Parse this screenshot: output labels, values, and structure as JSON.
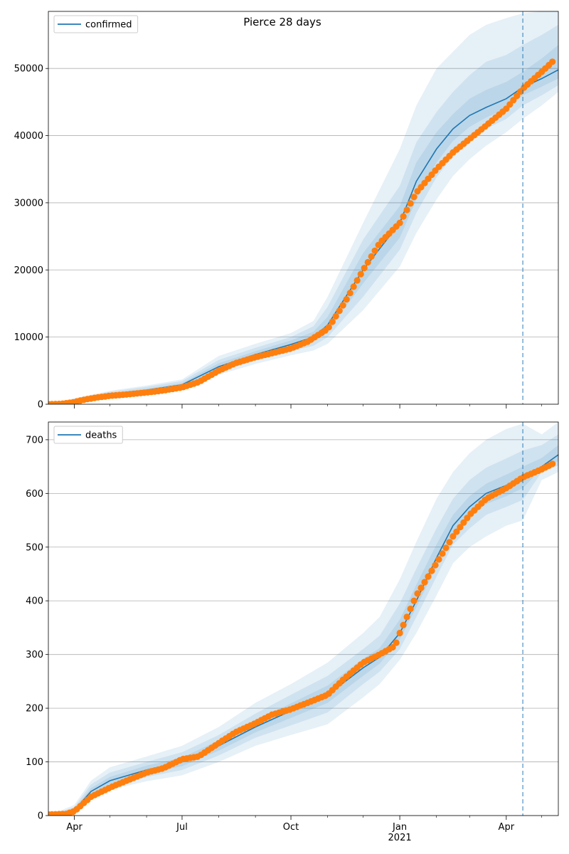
{
  "suptitle": "Pierce 28 days",
  "colors": {
    "model": "#1f77b4",
    "band": "#1f77b4",
    "observed": "#ff7f0e",
    "grid": "#b0b0b0",
    "forecast_line": "#1f77b4"
  },
  "x_axis": {
    "range": [
      "2020-03-10",
      "2021-05-15"
    ],
    "ticks": [
      {
        "date": "2020-04-01",
        "label": "Apr",
        "sub": ""
      },
      {
        "date": "2020-07-01",
        "label": "Jul",
        "sub": ""
      },
      {
        "date": "2020-10-01",
        "label": "Oct",
        "sub": ""
      },
      {
        "date": "2021-01-01",
        "label": "Jan",
        "sub": "2021"
      },
      {
        "date": "2021-04-01",
        "label": "Apr",
        "sub": ""
      }
    ],
    "minor_ticks": [
      "2020-05-01",
      "2020-06-01",
      "2020-08-01",
      "2020-09-01",
      "2020-11-01",
      "2020-12-01",
      "2021-02-01",
      "2021-03-01",
      "2021-05-01"
    ],
    "forecast_start": "2021-04-15"
  },
  "chart_data": [
    {
      "type": "line",
      "series_name": "confirmed",
      "legend": {
        "label": "confirmed",
        "placement": "upper-left"
      },
      "grid": true,
      "ylim": [
        0,
        58500
      ],
      "yticks": [
        0,
        10000,
        20000,
        30000,
        40000,
        50000
      ],
      "model": {
        "dates": [
          "2020-03-10",
          "2020-04-01",
          "2020-05-01",
          "2020-06-01",
          "2020-07-01",
          "2020-08-01",
          "2020-09-01",
          "2020-10-01",
          "2020-10-20",
          "2020-11-01",
          "2020-12-01",
          "2021-01-01",
          "2021-01-15",
          "2021-02-01",
          "2021-02-15",
          "2021-03-01",
          "2021-03-15",
          "2021-04-01",
          "2021-04-15",
          "2021-05-01",
          "2021-05-15"
        ],
        "values": [
          0,
          600,
          1500,
          2100,
          2900,
          5600,
          7400,
          8900,
          10000,
          11800,
          20000,
          27000,
          33200,
          38000,
          41000,
          43000,
          44200,
          45500,
          47200,
          48500,
          49800
        ],
        "bands": [
          {
            "lower": [
              0,
              400,
              1100,
              1600,
              2200,
              4400,
              6000,
              7300,
              8000,
              9000,
              14000,
              20500,
              25500,
              30500,
              34000,
              36500,
              38500,
              40500,
              42500,
              44500,
              46500
            ],
            "upper": [
              0,
              900,
              2000,
              2800,
              3700,
              7200,
              9000,
              10600,
              12400,
              16000,
              27000,
              38000,
              44500,
              50000,
              52500,
              55000,
              56500,
              57500,
              58200,
              58500,
              58500
            ]
          },
          {
            "lower": [
              0,
              470,
              1250,
              1800,
              2450,
              4850,
              6550,
              7900,
              8700,
              10000,
              16000,
              23000,
              28500,
              33800,
              37000,
              39500,
              41000,
              42500,
              44500,
              46000,
              47500
            ],
            "upper": [
              0,
              800,
              1850,
              2600,
              3450,
              6600,
              8400,
              10000,
              11600,
              14500,
              24500,
              32500,
              39000,
              43500,
              46500,
              49000,
              51000,
              52000,
              53500,
              55000,
              56500
            ]
          },
          {
            "lower": [
              0,
              530,
              1380,
              1950,
              2650,
              5200,
              7000,
              8400,
              9350,
              10900,
              18000,
              24800,
              30500,
              36000,
              39200,
              41300,
              42700,
              44000,
              46000,
              47300,
              48500
            ],
            "upper": [
              0,
              700,
              1650,
              2300,
              3150,
              6100,
              7900,
              9500,
              10800,
              13000,
              22500,
              29500,
              36000,
              40500,
              43200,
              45500,
              46800,
              48000,
              49500,
              51500,
              53500
            ]
          }
        ]
      },
      "observed": [
        {
          "date": "2020-03-10",
          "value": 0
        },
        {
          "date": "2020-03-20",
          "value": 50
        },
        {
          "date": "2020-03-30",
          "value": 250
        },
        {
          "date": "2020-04-10",
          "value": 700
        },
        {
          "date": "2020-04-20",
          "value": 1000
        },
        {
          "date": "2020-05-01",
          "value": 1250
        },
        {
          "date": "2020-05-15",
          "value": 1450
        },
        {
          "date": "2020-06-01",
          "value": 1750
        },
        {
          "date": "2020-06-15",
          "value": 2050
        },
        {
          "date": "2020-07-01",
          "value": 2500
        },
        {
          "date": "2020-07-15",
          "value": 3300
        },
        {
          "date": "2020-08-01",
          "value": 5000
        },
        {
          "date": "2020-08-15",
          "value": 6100
        },
        {
          "date": "2020-09-01",
          "value": 7000
        },
        {
          "date": "2020-09-15",
          "value": 7600
        },
        {
          "date": "2020-10-01",
          "value": 8300
        },
        {
          "date": "2020-10-15",
          "value": 9300
        },
        {
          "date": "2020-11-01",
          "value": 11200
        },
        {
          "date": "2020-11-15",
          "value": 15000
        },
        {
          "date": "2020-12-01",
          "value": 20000
        },
        {
          "date": "2020-12-15",
          "value": 24000
        },
        {
          "date": "2021-01-01",
          "value": 27000
        },
        {
          "date": "2021-01-15",
          "value": 31500
        },
        {
          "date": "2021-02-01",
          "value": 35000
        },
        {
          "date": "2021-02-15",
          "value": 37500
        },
        {
          "date": "2021-03-01",
          "value": 39500
        },
        {
          "date": "2021-03-15",
          "value": 41500
        },
        {
          "date": "2021-04-01",
          "value": 44000
        },
        {
          "date": "2021-04-15",
          "value": 47000
        },
        {
          "date": "2021-05-01",
          "value": 49500
        },
        {
          "date": "2021-05-10",
          "value": 51000
        }
      ]
    },
    {
      "type": "line",
      "series_name": "deaths",
      "legend": {
        "label": "deaths",
        "placement": "upper-left"
      },
      "grid": true,
      "ylim": [
        0,
        733
      ],
      "yticks": [
        0,
        100,
        200,
        300,
        400,
        500,
        600,
        700
      ],
      "model": {
        "dates": [
          "2020-03-10",
          "2020-04-01",
          "2020-04-15",
          "2020-05-01",
          "2020-06-01",
          "2020-07-01",
          "2020-08-01",
          "2020-09-01",
          "2020-10-01",
          "2020-11-01",
          "2020-12-01",
          "2020-12-15",
          "2021-01-01",
          "2021-01-15",
          "2021-02-01",
          "2021-02-15",
          "2021-03-01",
          "2021-03-15",
          "2021-04-01",
          "2021-04-15",
          "2021-05-01",
          "2021-05-15"
        ],
        "values": [
          0,
          10,
          45,
          65,
          85,
          100,
          130,
          165,
          195,
          225,
          275,
          295,
          340,
          400,
          480,
          540,
          575,
          600,
          615,
          630,
          650,
          672
        ],
        "bands": [
          {
            "lower": [
              0,
              5,
              30,
              48,
              64,
              75,
              100,
              130,
              150,
              170,
              220,
              245,
              290,
              340,
              410,
              470,
              500,
              520,
              540,
              550,
              625,
              640
            ],
            "upper": [
              0,
              20,
              65,
              90,
              110,
              130,
              165,
              210,
              245,
              285,
              340,
              370,
              440,
              510,
              590,
              640,
              675,
              700,
              720,
              730,
              710,
              733
            ]
          },
          {
            "lower": [
              0,
              7,
              36,
              54,
              72,
              85,
              112,
              145,
              168,
              192,
              245,
              268,
              310,
              370,
              445,
              505,
              535,
              560,
              575,
              588,
              640,
              652
            ],
            "upper": [
              0,
              16,
              58,
              80,
              100,
              118,
              150,
              190,
              225,
              260,
              310,
              335,
              395,
              460,
              535,
              590,
              625,
              648,
              665,
              680,
              690,
              710
            ]
          },
          {
            "lower": [
              0,
              8,
              40,
              59,
              78,
              92,
              121,
              155,
              182,
              210,
              260,
              283,
              328,
              388,
              465,
              525,
              558,
              580,
              595,
              610,
              646,
              660
            ],
            "upper": [
              0,
              13,
              51,
              72,
              93,
              108,
              140,
              176,
              209,
              242,
              292,
              312,
              365,
              430,
              505,
              560,
              595,
              618,
              635,
              650,
              666,
              690
            ]
          }
        ]
      },
      "observed": [
        {
          "date": "2020-03-10",
          "value": 2
        },
        {
          "date": "2020-03-25",
          "value": 3
        },
        {
          "date": "2020-04-01",
          "value": 8
        },
        {
          "date": "2020-04-15",
          "value": 35
        },
        {
          "date": "2020-05-01",
          "value": 52
        },
        {
          "date": "2020-05-15",
          "value": 65
        },
        {
          "date": "2020-06-01",
          "value": 80
        },
        {
          "date": "2020-06-15",
          "value": 88
        },
        {
          "date": "2020-07-01",
          "value": 105
        },
        {
          "date": "2020-07-15",
          "value": 110
        },
        {
          "date": "2020-08-01",
          "value": 135
        },
        {
          "date": "2020-08-15",
          "value": 155
        },
        {
          "date": "2020-09-01",
          "value": 172
        },
        {
          "date": "2020-09-15",
          "value": 188
        },
        {
          "date": "2020-10-01",
          "value": 198
        },
        {
          "date": "2020-10-15",
          "value": 210
        },
        {
          "date": "2020-11-01",
          "value": 225
        },
        {
          "date": "2020-11-15",
          "value": 255
        },
        {
          "date": "2020-12-01",
          "value": 285
        },
        {
          "date": "2020-12-15",
          "value": 300
        },
        {
          "date": "2020-12-28",
          "value": 316
        },
        {
          "date": "2021-01-01",
          "value": 340
        },
        {
          "date": "2021-01-15",
          "value": 410
        },
        {
          "date": "2021-02-01",
          "value": 470
        },
        {
          "date": "2021-02-15",
          "value": 520
        },
        {
          "date": "2021-03-01",
          "value": 560
        },
        {
          "date": "2021-03-15",
          "value": 590
        },
        {
          "date": "2021-04-01",
          "value": 610
        },
        {
          "date": "2021-04-15",
          "value": 630
        },
        {
          "date": "2021-05-01",
          "value": 645
        },
        {
          "date": "2021-05-10",
          "value": 655
        }
      ]
    }
  ]
}
